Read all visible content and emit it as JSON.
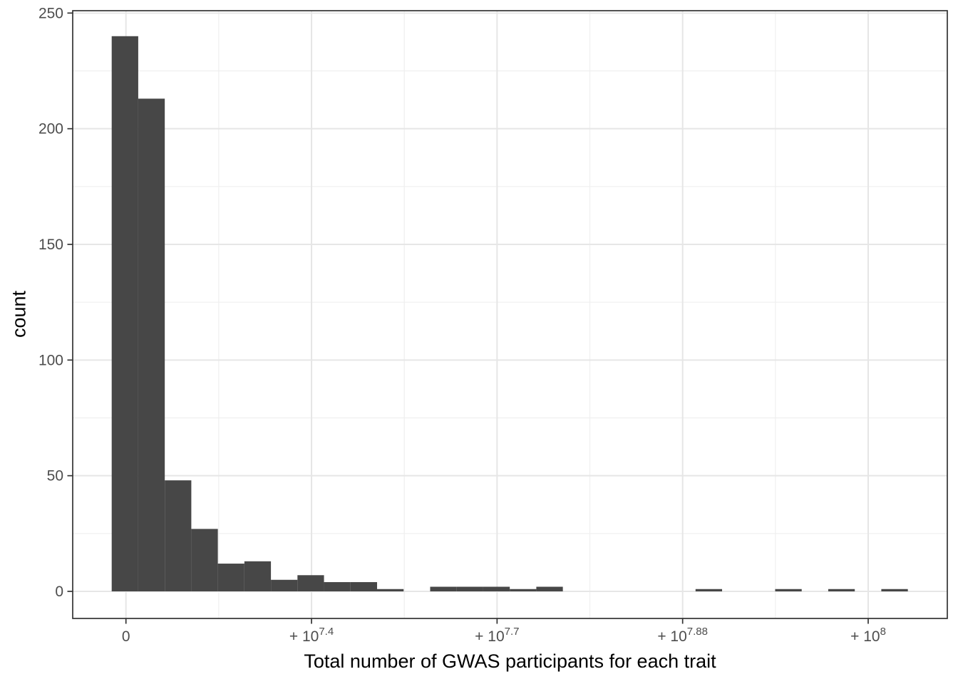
{
  "chart_data": {
    "type": "histogram",
    "title": "",
    "xlabel": "Total number of GWAS participants for each trait",
    "ylabel": "count",
    "legend": "none",
    "grid": "major and minor gridlines, light gray on white panel with dark border",
    "x_scale_note": "linear in number of participants; tick marks at 0, 25M, 50M, 75M, 100M labeled as 0, +10^7.4, +10^7.7, +10^7.88, +10^8",
    "x_unit": "millions of participants",
    "first_bin_left_millions": -1.921,
    "bin_width_millions": 3.5755,
    "bin_counts": [
      240,
      213,
      48,
      27,
      12,
      13,
      5,
      7,
      4,
      4,
      1,
      0,
      2,
      2,
      2,
      1,
      2,
      0,
      0,
      0,
      0,
      0,
      1,
      0,
      0,
      1,
      0,
      1,
      0,
      1
    ],
    "x_ticks": [
      {
        "value_millions": 0,
        "base": "0",
        "exp": "",
        "display": "0"
      },
      {
        "value_millions": 25,
        "base": "+ 10",
        "exp": "7.4",
        "display": "+10^7.4"
      },
      {
        "value_millions": 50,
        "base": "+ 10",
        "exp": "7.7",
        "display": "+10^7.7"
      },
      {
        "value_millions": 75,
        "base": "+ 10",
        "exp": "7.88",
        "display": "+10^7.88"
      },
      {
        "value_millions": 100,
        "base": "+ 10",
        "exp": "8",
        "display": "+10^8"
      }
    ],
    "x_minor_ticks_millions": [
      12.5,
      37.5,
      62.5,
      87.5
    ],
    "y_ticks": [
      0,
      50,
      100,
      150,
      200,
      250
    ],
    "y_minor_ticks": [
      25,
      75,
      125,
      175,
      225
    ],
    "ylim": [
      0,
      250
    ],
    "colors": {
      "bar": "#474747",
      "axis": "#333333",
      "grid_major": "#E6E6E6",
      "grid_minor": "#EFEFEF",
      "tick_text": "#4D4D4D",
      "title_text": "#000000",
      "background": "#FFFFFF"
    }
  }
}
